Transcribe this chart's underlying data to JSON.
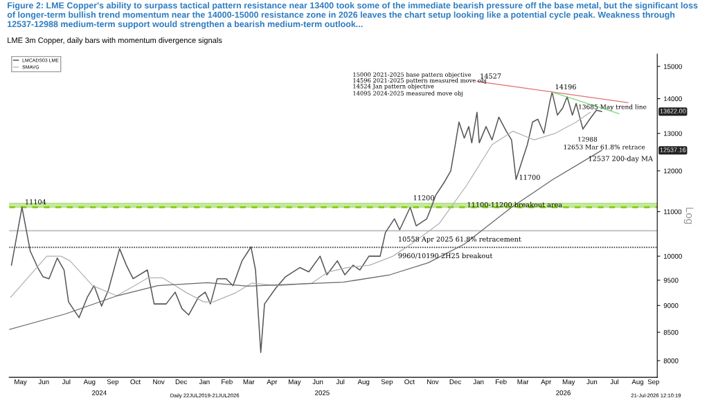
{
  "chart_data": {
    "type": "line",
    "title": "Figure 2: LME Copper's ability to surpass tactical pattern resistance near 13400 took some of the immediate bearish pressure off the base metal, but the significant loss of longer-term bullish trend momentum near the 14000-15000 resistance zone in 2026 leaves the chart setup looking like a potential cycle peak. Weakness through 12537-12988 medium-term support would strengthen a bearish medium-term outlook...",
    "subtitle": "LME 3m Copper, daily bars with momentum divergence signals",
    "ylabel": "Log",
    "log": true,
    "grid": false,
    "legend": "top left",
    "xlim": [
      "2024-05-01",
      "2026-09-11"
    ],
    "xticks": [
      {
        "value": "2024-05-16",
        "label": "May"
      },
      {
        "value": "2024-06-16",
        "label": "Jun"
      },
      {
        "value": "2024-07-16",
        "label": "Jul"
      },
      {
        "value": "2024-08-16",
        "label": "Aug"
      },
      {
        "value": "2024-09-16",
        "label": "Sep"
      },
      {
        "value": "2024-10-16",
        "label": "Oct"
      },
      {
        "value": "2024-11-16",
        "label": "Nov"
      },
      {
        "value": "2024-12-16",
        "label": "Dec"
      },
      {
        "value": "2025-01-16",
        "label": "Jan"
      },
      {
        "value": "2025-02-15",
        "label": "Feb"
      },
      {
        "value": "2025-03-16",
        "label": "Mar"
      },
      {
        "value": "2025-04-16",
        "label": "Apr"
      },
      {
        "value": "2025-05-16",
        "label": "May"
      },
      {
        "value": "2025-06-16",
        "label": "Jun"
      },
      {
        "value": "2025-07-16",
        "label": "Jul"
      },
      {
        "value": "2025-08-16",
        "label": "Aug"
      },
      {
        "value": "2025-09-16",
        "label": "Sep"
      },
      {
        "value": "2025-10-16",
        "label": "Oct"
      },
      {
        "value": "2025-11-16",
        "label": "Nov"
      },
      {
        "value": "2025-12-16",
        "label": "Dec"
      },
      {
        "value": "2026-01-16",
        "label": "Jan"
      },
      {
        "value": "2026-02-15",
        "label": "Feb"
      },
      {
        "value": "2026-03-16",
        "label": "Mar"
      },
      {
        "value": "2026-04-16",
        "label": "Apr"
      },
      {
        "value": "2026-05-16",
        "label": "May"
      },
      {
        "value": "2026-06-16",
        "label": "Jun"
      },
      {
        "value": "2026-07-16",
        "label": "Jul"
      },
      {
        "value": "2026-08-16",
        "label": "Aug"
      },
      {
        "value": "2026-09-06",
        "label": "Sep"
      }
    ],
    "ylim": [
      7720,
      15400
    ],
    "yticks": [
      8000,
      8500,
      9000,
      9500,
      10000,
      11000,
      12000,
      13000,
      14000,
      15000
    ],
    "series": [
      {
        "name": "LMCADS03 LME",
        "color": "#555555",
        "x": [
          "2024-05-04",
          "2024-05-18",
          "2024-05-29",
          "2024-06-08",
          "2024-06-15",
          "2024-06-23",
          "2024-07-04",
          "2024-07-13",
          "2024-07-19",
          "2024-08-02",
          "2024-08-13",
          "2024-08-22",
          "2024-09-01",
          "2024-09-10",
          "2024-09-25",
          "2024-10-04",
          "2024-10-13",
          "2024-11-01",
          "2024-11-10",
          "2024-11-26",
          "2024-12-08",
          "2024-12-17",
          "2024-12-26",
          "2025-01-08",
          "2025-01-17",
          "2025-01-24",
          "2025-02-02",
          "2025-02-14",
          "2025-02-23",
          "2025-03-07",
          "2025-03-19",
          "2025-03-25",
          "2025-04-01",
          "2025-04-06",
          "2025-04-21",
          "2025-05-04",
          "2025-05-23",
          "2025-06-04",
          "2025-06-19",
          "2025-06-28",
          "2025-07-12",
          "2025-07-22",
          "2025-08-02",
          "2025-08-11",
          "2025-08-23",
          "2025-09-07",
          "2025-09-14",
          "2025-09-26",
          "2025-10-03",
          "2025-10-17",
          "2025-10-25",
          "2025-11-08",
          "2025-11-13",
          "2025-11-20",
          "2025-12-02",
          "2025-12-10",
          "2025-12-16",
          "2025-12-21",
          "2025-12-28",
          "2026-01-03",
          "2026-01-07",
          "2026-01-14",
          "2026-01-17",
          "2026-01-26",
          "2026-02-03",
          "2026-02-12",
          "2026-02-22",
          "2026-03-01",
          "2026-03-07",
          "2026-03-15",
          "2026-03-22",
          "2026-03-29",
          "2026-04-05",
          "2026-04-13",
          "2026-04-21",
          "2026-04-24",
          "2026-05-01",
          "2026-05-08",
          "2026-05-14",
          "2026-05-21",
          "2026-05-26",
          "2026-06-04",
          "2026-06-13",
          "2026-06-22",
          "2026-06-29"
        ],
        "values": [
          9810,
          11104,
          10110,
          9760,
          9570,
          9530,
          9960,
          9710,
          9070,
          8770,
          9160,
          9390,
          8990,
          9300,
          10160,
          9810,
          9530,
          9710,
          9030,
          9030,
          9260,
          8940,
          8820,
          9160,
          9260,
          9030,
          9530,
          9530,
          9390,
          9900,
          10200,
          9710,
          8140,
          9030,
          9340,
          9570,
          9760,
          9670,
          10000,
          9610,
          9900,
          9610,
          9810,
          9710,
          10000,
          10000,
          10520,
          10830,
          10580,
          11100,
          10670,
          10830,
          11050,
          11390,
          11730,
          12000,
          12690,
          13320,
          12870,
          13190,
          12740,
          13600,
          12740,
          13190,
          12820,
          13460,
          13060,
          12820,
          11780,
          12260,
          12690,
          13320,
          13400,
          13000,
          13910,
          14196,
          13520,
          13720,
          14060,
          13520,
          13860,
          13120,
          13400,
          13660,
          13622
        ]
      },
      {
        "name": "SMAVG",
        "color": "#b0b0b0",
        "x": [
          "2024-05-03",
          "2024-06-20",
          "2024-07-09",
          "2024-07-21",
          "2024-08-20",
          "2024-09-21",
          "2024-10-15",
          "2024-11-02",
          "2024-11-21",
          "2024-12-22",
          "2025-01-15",
          "2025-01-28",
          "2025-02-27",
          "2025-03-20",
          "2025-04-24",
          "2025-06-08",
          "2025-06-30",
          "2025-07-25",
          "2025-08-24",
          "2025-09-24",
          "2025-10-26",
          "2025-11-25",
          "2025-12-31",
          "2026-02-03",
          "2026-03-03",
          "2026-03-31",
          "2026-04-28",
          "2026-05-26",
          "2026-06-14"
        ],
        "values": [
          9160,
          10000,
          10000,
          9900,
          9390,
          9190,
          9390,
          9550,
          9550,
          9260,
          9070,
          9070,
          9250,
          9440,
          9390,
          9440,
          9670,
          9760,
          9810,
          10000,
          10350,
          10730,
          11630,
          12690,
          13060,
          12820,
          13000,
          13320,
          13600
        ]
      },
      {
        "color": "#666666",
        "x": [
          "2024-05-01",
          "2024-07-15",
          "2024-09-20",
          "2024-11-15",
          "2025-01-20",
          "2025-03-15",
          "2025-05-15",
          "2025-07-20",
          "2025-09-20",
          "2025-11-10",
          "2025-12-28",
          "2026-03-01",
          "2026-04-25",
          "2026-06-29"
        ],
        "values": [
          8550,
          8840,
          9180,
          9390,
          9450,
          9380,
          9420,
          9460,
          9610,
          9860,
          10260,
          11100,
          11780,
          12537
        ]
      },
      {
        "color": "#e07070",
        "x": [
          "2026-01-14",
          "2026-08-03"
        ],
        "values": [
          14527,
          13880
        ]
      },
      {
        "color": "#70dd70",
        "x": [
          "2026-04-24",
          "2026-07-22"
        ],
        "values": [
          14196,
          13560
        ]
      }
    ],
    "ref_lines": [
      {
        "axis": "y",
        "value": 11104,
        "color": "#80cc10",
        "line_style": "dashed"
      },
      {
        "axis": "y",
        "value": 10190,
        "label": "9960/10190 2H25 breakout",
        "color": "#333333",
        "line_style": "dotted"
      },
      {
        "axis": "y",
        "value": 10558,
        "label": "10558 Apr 2025 61.8% retracement",
        "color": "#bbbbbb",
        "line_style": "solid"
      }
    ],
    "bands": [
      {
        "axis": "y",
        "from": 11100,
        "to": 11200,
        "label": "11100-11200 breakout area",
        "color": "#9fdc50"
      }
    ],
    "annotations": [
      {
        "text": "11104",
        "x": "2024-05-18",
        "y": 11104
      },
      {
        "text": "11200",
        "x": "2025-10-17",
        "y": 11200
      },
      {
        "text": "14527",
        "x": "2026-01-14",
        "y": 14527
      },
      {
        "text": "14196",
        "x": "2026-04-24",
        "y": 14196
      },
      {
        "text": "11700",
        "x": "2026-03-07",
        "y": 11700
      },
      "12988",
      "13685 May trend line",
      "12653 Mar 61.8% retrace",
      {
        "text": "12537 200-day MA",
        "x": "2026-06-29",
        "y": 12537
      },
      "13622.00",
      "12537.16",
      "15000 2021-2025 base pattern objective",
      "14596 2021-2025 pattern measured move obj",
      "14524 Jan pattern objective",
      "14095 2024-2025 measured move obj",
      "2024",
      "2025",
      "2026",
      "Daily 22JUL2019-21JUL2026",
      "21-Jul-2026 12:10:19"
    ]
  }
}
